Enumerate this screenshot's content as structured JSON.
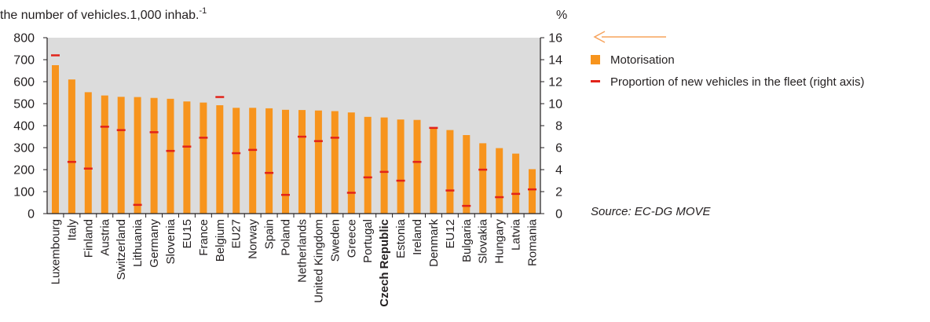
{
  "chart_data": {
    "type": "bar",
    "title": "",
    "ylabel": "the number of vehicles.1,000 inhab.",
    "ylabel_sup": "-1",
    "y2label": "%",
    "ylim": [
      0,
      800
    ],
    "y2lim": [
      0,
      16
    ],
    "yticks": [
      "0",
      "100",
      "200",
      "300",
      "400",
      "500",
      "600",
      "700",
      "800"
    ],
    "y2ticks": [
      "0",
      "2",
      "4",
      "6",
      "8",
      "10",
      "12",
      "14",
      "16"
    ],
    "grid": false,
    "legend_position": "right",
    "categories": [
      "Luxembourg",
      "Italy",
      "Finland",
      "Austria",
      "Switzerland",
      "Lithuania",
      "Germany",
      "Slovenia",
      "EU15",
      "France",
      "Belgium",
      "EU27",
      "Norway",
      "Spain",
      "Poland",
      "Netherlands",
      "United Kingdom",
      "Sweden",
      "Greece",
      "Portugal",
      "Czech Republic",
      "Estonia",
      "Ireland",
      "Denmark",
      "EU12",
      "Bulgaria",
      "Slovakia",
      "Hungary",
      "Latvia",
      "Romania"
    ],
    "highlight_category": "Czech Republic",
    "series": [
      {
        "name": "Motorisation",
        "type": "bar",
        "axis": "left",
        "color": "#f7941d",
        "values": [
          675,
          610,
          552,
          537,
          531,
          530,
          526,
          522,
          510,
          505,
          493,
          481,
          481,
          479,
          472,
          471,
          469,
          466,
          460,
          440,
          437,
          428,
          426,
          387,
          380,
          357,
          320,
          298,
          273,
          202
        ]
      },
      {
        "name": "Proportion of new vehicles in the fleet (right axis)",
        "type": "marker",
        "axis": "right",
        "color": "#e2231a",
        "values": [
          14.4,
          4.7,
          4.1,
          7.9,
          7.6,
          0.8,
          7.4,
          5.7,
          6.1,
          6.9,
          10.6,
          5.5,
          5.8,
          3.7,
          1.7,
          7.0,
          6.6,
          6.9,
          1.9,
          3.3,
          3.8,
          3.0,
          4.7,
          7.8,
          2.1,
          0.7,
          4.0,
          1.5,
          1.8,
          2.2
        ]
      }
    ]
  },
  "source_text": "Source: EC-DG MOVE",
  "arrow_color": "#f7a35c",
  "plot_background": "#dcdcdc"
}
